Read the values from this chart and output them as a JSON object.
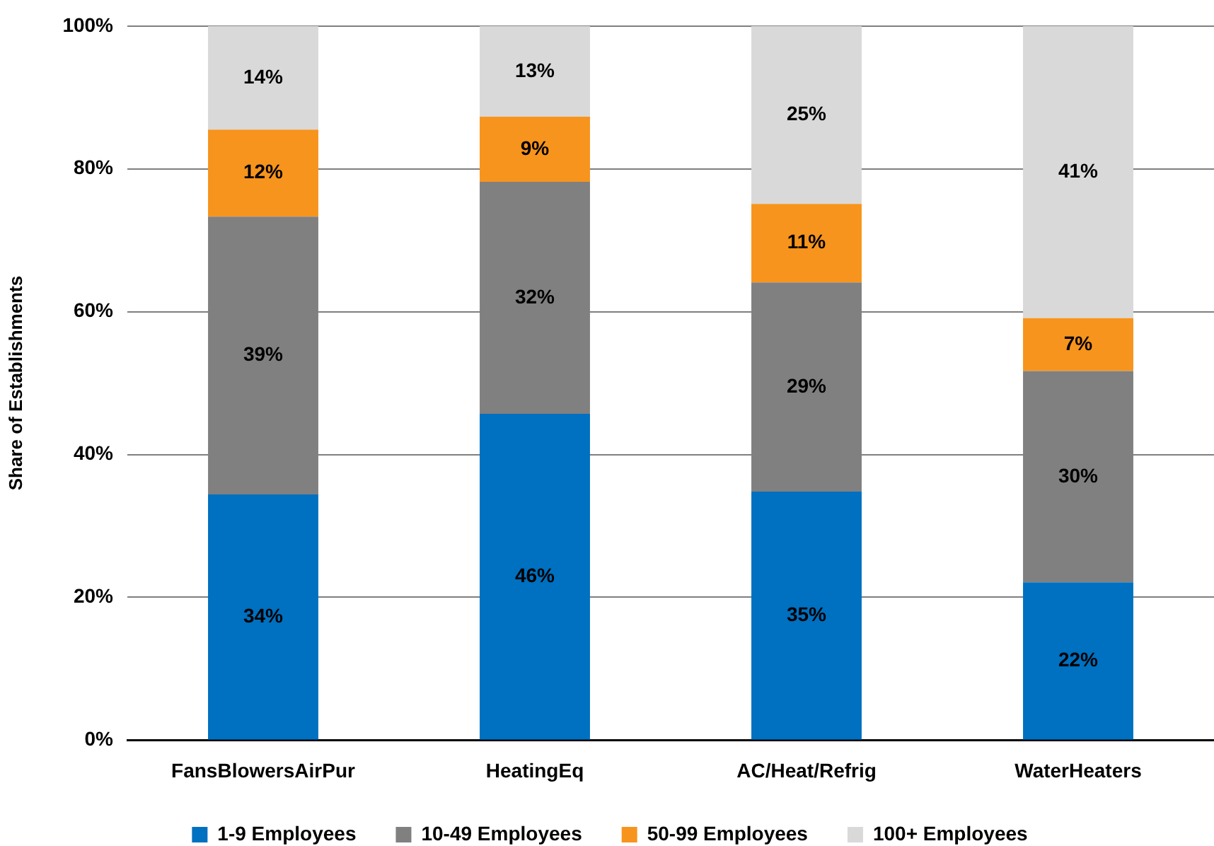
{
  "chart_data": {
    "type": "bar",
    "stacked": true,
    "ylabel": "Share of Establishments",
    "categories": [
      "FansBlowersAirPur",
      "HeatingEq",
      "AC/Heat/Refrig",
      "WaterHeaters"
    ],
    "series": [
      {
        "name": "1-9 Employees",
        "color": "#0070c0",
        "values": [
          34.4,
          45.7,
          34.8,
          22.1
        ],
        "value_labels": [
          "34%",
          "46%",
          "35%",
          "22%"
        ]
      },
      {
        "name": "10-49 Employees",
        "color": "#808080",
        "values": [
          38.9,
          32.5,
          29.3,
          29.6
        ],
        "value_labels": [
          "39%",
          "32%",
          "29%",
          "30%"
        ]
      },
      {
        "name": "50-99 Employees",
        "color": "#f7941d",
        "values": [
          12.2,
          9.1,
          11.0,
          7.4
        ],
        "value_labels": [
          "12%",
          "9%",
          "11%",
          "7%"
        ]
      },
      {
        "name": "100+ Employees",
        "color": "#d9d9d9",
        "values": [
          14.5,
          12.7,
          24.9,
          40.9
        ],
        "value_labels": [
          "14%",
          "13%",
          "25%",
          "41%"
        ]
      }
    ],
    "ylim": [
      0,
      100
    ],
    "yticks": [
      {
        "value": 0,
        "label": "0%"
      },
      {
        "value": 20,
        "label": "20%"
      },
      {
        "value": 40,
        "label": "40%"
      },
      {
        "value": 60,
        "label": "60%"
      },
      {
        "value": 80,
        "label": "80%"
      },
      {
        "value": 100,
        "label": "100%"
      }
    ],
    "grid": "y",
    "legend": "bottom"
  }
}
